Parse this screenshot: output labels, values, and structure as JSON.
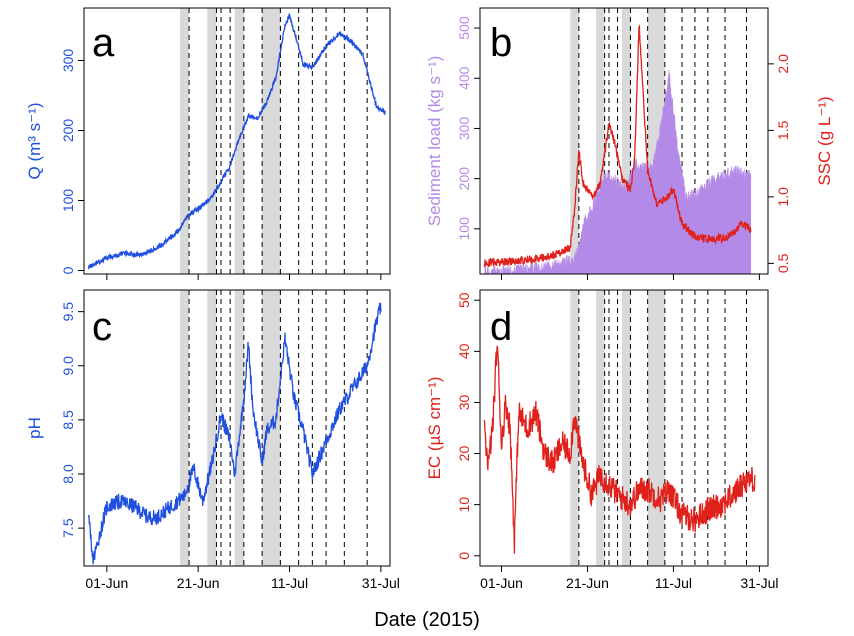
{
  "colors": {
    "blue": "#1f4fe0",
    "red": "#e0201a",
    "purple": "#b48ae8",
    "shade": "#d9d9d9",
    "axis": "#000000"
  },
  "x_axis_title": "Date (2015)",
  "x_range": [
    "2015-05-27",
    "2015-08-02"
  ],
  "x_ticks": [
    {
      "date": "2015-06-01",
      "label": "01-Jun"
    },
    {
      "date": "2015-06-21",
      "label": "21-Jun"
    },
    {
      "date": "2015-07-11",
      "label": "11-Jul"
    },
    {
      "date": "2015-07-31",
      "label": "31-Jul"
    }
  ],
  "events": {
    "shaded_periods": [
      [
        "2015-06-17",
        "2015-06-19"
      ],
      [
        "2015-06-23",
        "2015-06-25"
      ],
      [
        "2015-06-29",
        "2015-07-01"
      ],
      [
        "2015-07-05",
        "2015-07-09"
      ]
    ],
    "dashed_lines": [
      "2015-06-19",
      "2015-06-25",
      "2015-06-26",
      "2015-06-28",
      "2015-07-01",
      "2015-07-05",
      "2015-07-09",
      "2015-07-13",
      "2015-07-16",
      "2015-07-19",
      "2015-07-23",
      "2015-07-28"
    ]
  },
  "chart_data": [
    {
      "panel": "a",
      "type": "line",
      "color": "#1f4fe0",
      "ylabel": "Q (m³ s⁻¹)",
      "ylim": [
        -5,
        375
      ],
      "yticks": [
        "0",
        "100",
        "200",
        "300"
      ],
      "ytick_values": [
        0,
        100,
        200,
        300
      ],
      "series": [
        {
          "x": [
            "2015-05-28",
            "2015-06-01",
            "2015-06-05",
            "2015-06-08",
            "2015-06-12",
            "2015-06-16",
            "2015-06-19",
            "2015-06-21",
            "2015-06-24",
            "2015-06-28",
            "2015-06-30",
            "2015-07-02",
            "2015-07-04",
            "2015-07-06",
            "2015-07-08",
            "2015-07-10",
            "2015-07-11",
            "2015-07-14",
            "2015-07-16",
            "2015-07-19",
            "2015-07-22",
            "2015-07-24",
            "2015-07-27",
            "2015-07-30",
            "2015-08-01"
          ],
          "y": [
            5,
            18,
            25,
            22,
            32,
            52,
            80,
            88,
            105,
            150,
            190,
            220,
            218,
            240,
            275,
            350,
            365,
            295,
            290,
            320,
            340,
            330,
            310,
            235,
            225
          ]
        }
      ]
    },
    {
      "panel": "b",
      "type": "line+area",
      "ylabel": "Sediment load (kg s⁻¹)",
      "ylabel_color": "#b48ae8",
      "ylim": [
        10,
        540
      ],
      "yticks": [
        "100",
        "200",
        "300",
        "400",
        "500"
      ],
      "ytick_values": [
        100,
        200,
        300,
        400,
        500
      ],
      "ylabel2": "SSC (g L⁻¹)",
      "ylabel2_color": "#e0201a",
      "ylim2": [
        0.42,
        2.42
      ],
      "yticks2": [
        "0.5",
        "1.0",
        "1.5",
        "2.0"
      ],
      "ytick2_values": [
        0.5,
        1.0,
        1.5,
        2.0
      ],
      "series": [
        {
          "axis": "left",
          "kind": "area",
          "color": "#b48ae8",
          "x": [
            "2015-05-28",
            "2015-06-05",
            "2015-06-12",
            "2015-06-18",
            "2015-06-19",
            "2015-06-20",
            "2015-06-22",
            "2015-06-25",
            "2015-06-27",
            "2015-06-30",
            "2015-07-02",
            "2015-07-04",
            "2015-07-06",
            "2015-07-08",
            "2015-07-10",
            "2015-07-12",
            "2015-07-14",
            "2015-07-17",
            "2015-07-20",
            "2015-07-23",
            "2015-07-26",
            "2015-07-29"
          ],
          "y": [
            15,
            18,
            25,
            40,
            65,
            110,
            140,
            210,
            200,
            180,
            230,
            220,
            220,
            300,
            410,
            260,
            160,
            175,
            195,
            210,
            215,
            205
          ]
        },
        {
          "axis": "right",
          "kind": "line",
          "color": "#e0201a",
          "x": [
            "2015-05-28",
            "2015-06-05",
            "2015-06-12",
            "2015-06-17",
            "2015-06-18",
            "2015-06-19",
            "2015-06-20",
            "2015-06-22",
            "2015-06-24",
            "2015-06-26",
            "2015-06-27",
            "2015-06-29",
            "2015-07-01",
            "2015-07-02",
            "2015-07-03",
            "2015-07-05",
            "2015-07-07",
            "2015-07-09",
            "2015-07-11",
            "2015-07-13",
            "2015-07-16",
            "2015-07-20",
            "2015-07-24",
            "2015-07-27",
            "2015-07-29"
          ],
          "y": [
            0.5,
            0.52,
            0.55,
            0.62,
            0.9,
            1.35,
            1.1,
            1.0,
            1.1,
            1.55,
            1.45,
            1.15,
            1.05,
            1.3,
            2.3,
            1.2,
            0.95,
            0.98,
            1.05,
            0.8,
            0.7,
            0.68,
            0.7,
            0.8,
            0.75
          ]
        }
      ]
    },
    {
      "panel": "c",
      "type": "line",
      "color": "#1f4fe0",
      "ylabel": "pH",
      "ylim": [
        7.15,
        9.7
      ],
      "yticks": [
        "7.5",
        "8.0",
        "8.5",
        "9.0",
        "9.5"
      ],
      "ytick_values": [
        7.5,
        8.0,
        8.5,
        9.0,
        9.5
      ],
      "series": [
        {
          "x": [
            "2015-05-28",
            "2015-05-29",
            "2015-06-01",
            "2015-06-04",
            "2015-06-07",
            "2015-06-10",
            "2015-06-12",
            "2015-06-15",
            "2015-06-18",
            "2015-06-20",
            "2015-06-22",
            "2015-06-24",
            "2015-06-26",
            "2015-06-28",
            "2015-06-29",
            "2015-07-01",
            "2015-07-02",
            "2015-07-03",
            "2015-07-05",
            "2015-07-06",
            "2015-07-08",
            "2015-07-10",
            "2015-07-12",
            "2015-07-14",
            "2015-07-16",
            "2015-07-19",
            "2015-07-22",
            "2015-07-25",
            "2015-07-28",
            "2015-07-30",
            "2015-07-31"
          ],
          "y": [
            7.6,
            7.2,
            7.7,
            7.75,
            7.7,
            7.6,
            7.6,
            7.7,
            7.8,
            8.05,
            7.75,
            8.1,
            8.55,
            8.3,
            8.0,
            8.7,
            9.2,
            8.6,
            8.1,
            8.4,
            8.5,
            9.25,
            8.7,
            8.4,
            8.0,
            8.3,
            8.6,
            8.8,
            9.0,
            9.4,
            9.55
          ]
        }
      ]
    },
    {
      "panel": "d",
      "type": "line",
      "color": "#e0201a",
      "ylabel": "EC (µS cm⁻¹)",
      "ylim": [
        -2,
        52
      ],
      "yticks": [
        "0",
        "10",
        "20",
        "30",
        "40",
        "50"
      ],
      "ytick_values": [
        0,
        10,
        20,
        30,
        40,
        50
      ],
      "series": [
        {
          "x": [
            "2015-05-28",
            "2015-05-29",
            "2015-05-30",
            "2015-05-31",
            "2015-06-01",
            "2015-06-02",
            "2015-06-03",
            "2015-06-04",
            "2015-06-05",
            "2015-06-07",
            "2015-06-09",
            "2015-06-11",
            "2015-06-13",
            "2015-06-15",
            "2015-06-17",
            "2015-06-18",
            "2015-06-19",
            "2015-06-20",
            "2015-06-22",
            "2015-06-24",
            "2015-06-26",
            "2015-06-28",
            "2015-07-01",
            "2015-07-03",
            "2015-07-05",
            "2015-07-08",
            "2015-07-10",
            "2015-07-13",
            "2015-07-16",
            "2015-07-19",
            "2015-07-22",
            "2015-07-25",
            "2015-07-28",
            "2015-07-30"
          ],
          "y": [
            24,
            18,
            26,
            42,
            22,
            30,
            25,
            3,
            28,
            25,
            28,
            20,
            18,
            22,
            20,
            28,
            22,
            18,
            12,
            16,
            14,
            12,
            10,
            13,
            13,
            11,
            13,
            8,
            7,
            9,
            10,
            12,
            15,
            15
          ]
        }
      ]
    }
  ]
}
